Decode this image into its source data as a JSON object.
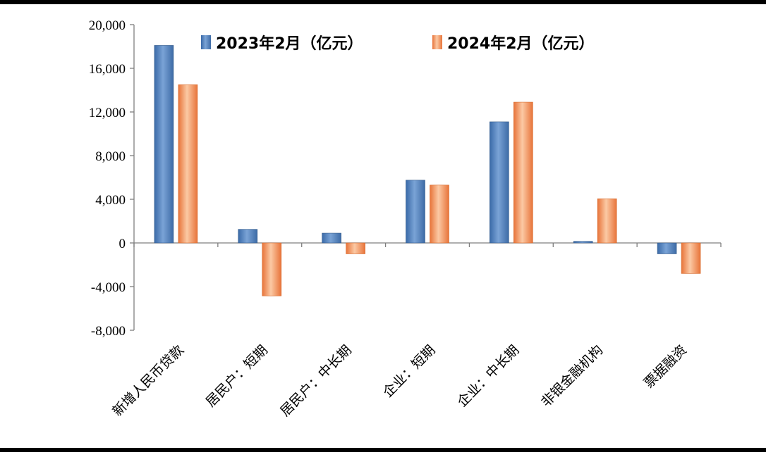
{
  "colors": {
    "series_2023": "#4f81bd",
    "series_2024": "#f79646"
  },
  "chart_data": {
    "type": "bar",
    "categories": [
      "新增人民币贷款",
      "居民户：短期",
      "居民户：中长期",
      "企业：短期",
      "企业：中长期",
      "非银金融机构",
      "票据融资"
    ],
    "series": [
      {
        "name": "2023年2月（亿元）",
        "values": [
          18100,
          1250,
          900,
          5750,
          11100,
          150,
          -1000
        ]
      },
      {
        "name": "2024年2月（亿元）",
        "values": [
          14500,
          -4850,
          -1000,
          5300,
          12900,
          4050,
          -2800
        ]
      }
    ],
    "yticks": [
      "20,000",
      "16,000",
      "12,000",
      "8,000",
      "4,000",
      "0",
      "-4,000",
      "-8,000"
    ],
    "ylim": [
      -8000,
      20000
    ],
    "grid": false,
    "legend": "top"
  }
}
